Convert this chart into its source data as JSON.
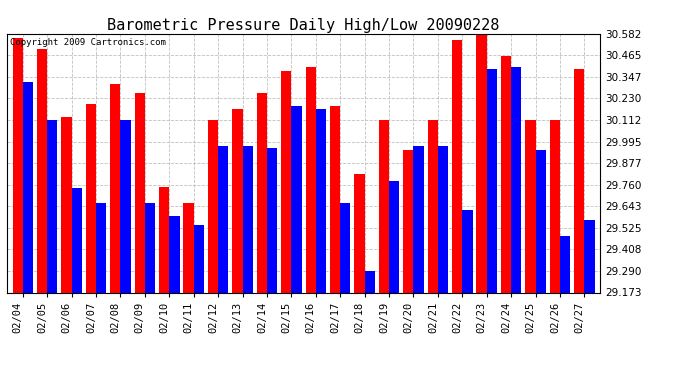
{
  "title": "Barometric Pressure Daily High/Low 20090228",
  "copyright": "Copyright 2009 Cartronics.com",
  "dates": [
    "02/04",
    "02/05",
    "02/06",
    "02/07",
    "02/08",
    "02/09",
    "02/10",
    "02/11",
    "02/12",
    "02/13",
    "02/14",
    "02/15",
    "02/16",
    "02/17",
    "02/18",
    "02/19",
    "02/20",
    "02/21",
    "02/22",
    "02/23",
    "02/24",
    "02/25",
    "02/26",
    "02/27"
  ],
  "highs": [
    30.56,
    30.5,
    30.13,
    30.2,
    30.31,
    30.26,
    29.75,
    29.66,
    30.11,
    30.17,
    30.26,
    30.38,
    30.4,
    30.19,
    29.82,
    30.11,
    29.95,
    30.11,
    30.55,
    30.58,
    30.46,
    30.11,
    30.11,
    30.39
  ],
  "lows": [
    30.32,
    30.11,
    29.74,
    29.66,
    30.11,
    29.66,
    29.59,
    29.54,
    29.97,
    29.97,
    29.96,
    30.19,
    30.17,
    29.66,
    29.29,
    29.78,
    29.97,
    29.97,
    29.62,
    30.39,
    30.4,
    29.95,
    29.48,
    29.57
  ],
  "ylim_min": 29.173,
  "ylim_max": 30.582,
  "yticks": [
    29.173,
    29.29,
    29.408,
    29.525,
    29.643,
    29.76,
    29.877,
    29.995,
    30.112,
    30.23,
    30.347,
    30.465,
    30.582
  ],
  "bar_color_high": "#ff0000",
  "bar_color_low": "#0000ff",
  "background_color": "#ffffff",
  "plot_bg_color": "#ffffff",
  "grid_color": "#b0b0b0",
  "title_fontsize": 11,
  "copyright_fontsize": 6.5,
  "tick_fontsize": 7.5,
  "bar_width": 0.42
}
